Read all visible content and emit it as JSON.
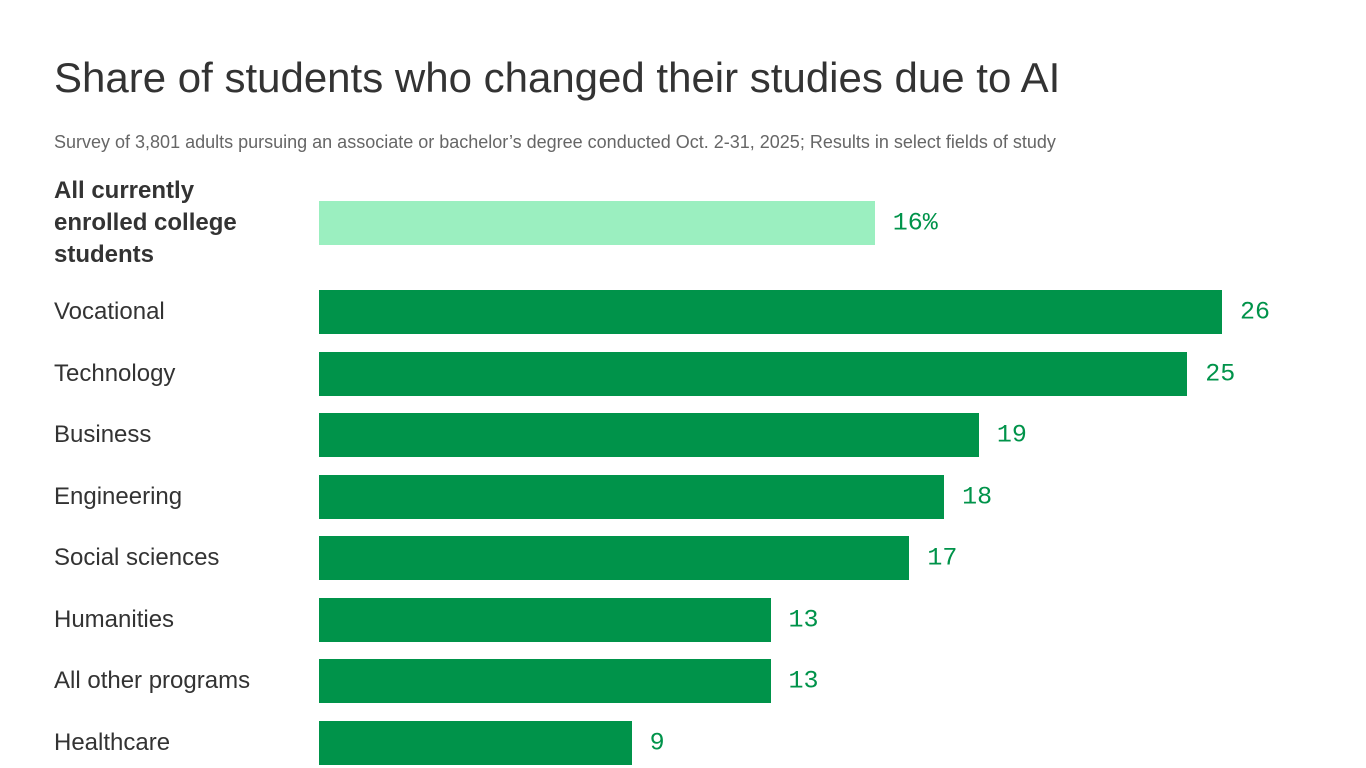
{
  "chart_data": {
    "type": "bar",
    "orientation": "horizontal",
    "title": "Share of students who changed their studies due to AI",
    "subtitle": "Survey of 3,801 adults pursuing an associate or bachelor’s degree conducted Oct. 2-31, 2025; Results in select fields of study",
    "categories": [
      "All currently enrolled college students",
      "Vocational",
      "Technology",
      "Business",
      "Engineering",
      "Social sciences",
      "Humanities",
      "All other programs",
      "Healthcare"
    ],
    "values": [
      16,
      26,
      25,
      19,
      18,
      17,
      13,
      13,
      9
    ],
    "value_labels": [
      "16%",
      "26",
      "25",
      "19",
      "18",
      "17",
      "13",
      "13",
      "9"
    ],
    "colors": [
      "#9befc0",
      "#00934a",
      "#00934a",
      "#00934a",
      "#00934a",
      "#00934a",
      "#00934a",
      "#00934a",
      "#00934a"
    ],
    "label_colors": [
      "#00934a",
      "#00934a",
      "#00934a",
      "#00934a",
      "#00934a",
      "#00934a",
      "#00934a",
      "#00934a",
      "#00934a"
    ]
  }
}
